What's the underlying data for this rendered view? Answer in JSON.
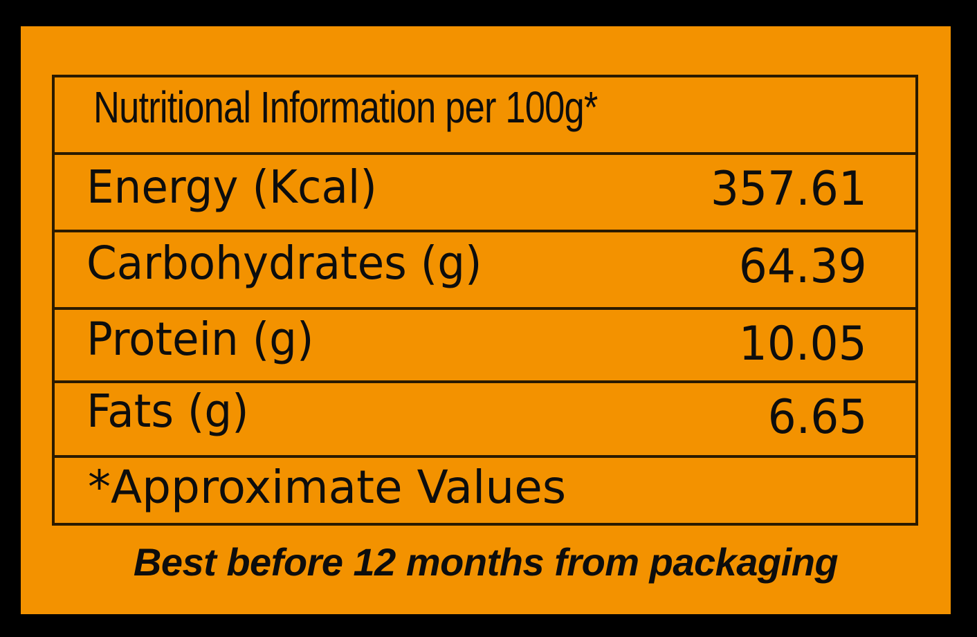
{
  "panel": {
    "background_color": "#f39200",
    "title": "Nutritional Information per 100g*",
    "rows": [
      {
        "label": "Energy (Kcal)",
        "value": "357.61"
      },
      {
        "label": "Carbohydrates (g)",
        "value": "64.39"
      },
      {
        "label": "Protein (g)",
        "value": "10.05"
      },
      {
        "label": "Fats (g)",
        "value": "6.65"
      }
    ],
    "note": "*Approximate Values",
    "footer": "Best before 12 months from packaging"
  }
}
